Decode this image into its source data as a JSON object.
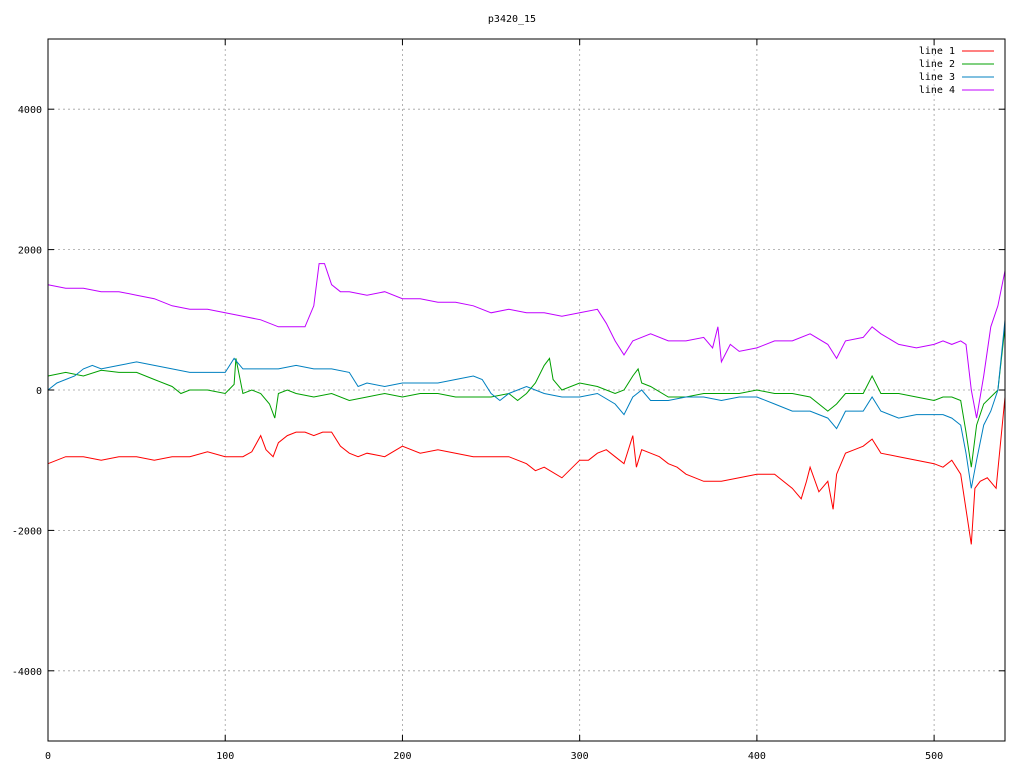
{
  "chart_data": {
    "type": "line",
    "title": "p3420_15",
    "xlim": [
      0,
      540
    ],
    "ylim": [
      -5000,
      5000
    ],
    "xticks": [
      0,
      100,
      200,
      300,
      400,
      500
    ],
    "yticks": [
      -4000,
      -2000,
      0,
      2000,
      4000
    ],
    "grid": true,
    "legend_position": "top-right",
    "series": [
      {
        "name": "line 1",
        "color": "#ff0000",
        "x": [
          0,
          10,
          20,
          30,
          40,
          50,
          60,
          70,
          80,
          90,
          100,
          110,
          115,
          120,
          123,
          127,
          130,
          135,
          140,
          145,
          150,
          155,
          160,
          165,
          170,
          175,
          180,
          190,
          200,
          210,
          220,
          230,
          240,
          250,
          260,
          270,
          275,
          280,
          290,
          300,
          305,
          310,
          315,
          320,
          325,
          330,
          332,
          335,
          340,
          345,
          350,
          355,
          360,
          370,
          380,
          390,
          400,
          410,
          420,
          425,
          428,
          430,
          435,
          440,
          443,
          445,
          450,
          455,
          460,
          465,
          470,
          480,
          490,
          500,
          505,
          510,
          515,
          518,
          521,
          523,
          526,
          530,
          535,
          540
        ],
        "y": [
          -1050,
          -950,
          -950,
          -1000,
          -950,
          -950,
          -1000,
          -950,
          -950,
          -880,
          -950,
          -950,
          -880,
          -650,
          -850,
          -950,
          -750,
          -650,
          -600,
          -600,
          -650,
          -600,
          -600,
          -800,
          -900,
          -950,
          -900,
          -950,
          -800,
          -900,
          -850,
          -900,
          -950,
          -950,
          -950,
          -1050,
          -1150,
          -1100,
          -1250,
          -1000,
          -1000,
          -900,
          -850,
          -950,
          -1050,
          -650,
          -1100,
          -850,
          -900,
          -950,
          -1050,
          -1100,
          -1200,
          -1300,
          -1300,
          -1250,
          -1200,
          -1200,
          -1400,
          -1550,
          -1300,
          -1100,
          -1450,
          -1300,
          -1700,
          -1200,
          -900,
          -850,
          -800,
          -700,
          -900,
          -950,
          -1000,
          -1050,
          -1100,
          -1000,
          -1200,
          -1700,
          -2200,
          -1400,
          -1300,
          -1250,
          -1400,
          -100
        ]
      },
      {
        "name": "line 2",
        "color": "#00a000",
        "x": [
          0,
          10,
          20,
          30,
          40,
          50,
          60,
          70,
          75,
          80,
          90,
          100,
          105,
          106,
          110,
          115,
          120,
          125,
          128,
          130,
          135,
          140,
          150,
          160,
          170,
          180,
          190,
          200,
          210,
          220,
          230,
          240,
          250,
          260,
          265,
          270,
          275,
          280,
          283,
          285,
          290,
          300,
          310,
          320,
          325,
          330,
          333,
          335,
          340,
          350,
          360,
          370,
          380,
          390,
          400,
          410,
          420,
          430,
          440,
          445,
          450,
          460,
          465,
          470,
          480,
          490,
          500,
          505,
          510,
          515,
          518,
          521,
          524,
          528,
          532,
          536,
          540
        ],
        "y": [
          200,
          250,
          200,
          280,
          250,
          250,
          150,
          50,
          -50,
          0,
          0,
          -50,
          80,
          450,
          -50,
          0,
          -50,
          -200,
          -400,
          -50,
          0,
          -50,
          -100,
          -50,
          -150,
          -100,
          -50,
          -100,
          -50,
          -50,
          -100,
          -100,
          -100,
          -50,
          -150,
          -50,
          100,
          350,
          450,
          150,
          0,
          100,
          50,
          -50,
          0,
          200,
          300,
          100,
          50,
          -100,
          -100,
          -50,
          -50,
          -50,
          0,
          -50,
          -50,
          -100,
          -300,
          -200,
          -50,
          -50,
          200,
          -50,
          -50,
          -100,
          -150,
          -100,
          -100,
          -150,
          -600,
          -1100,
          -500,
          -200,
          -100,
          0,
          900
        ]
      },
      {
        "name": "line 3",
        "color": "#0080c0",
        "x": [
          0,
          5,
          10,
          15,
          20,
          25,
          30,
          40,
          50,
          60,
          70,
          80,
          90,
          100,
          105,
          110,
          120,
          130,
          140,
          150,
          160,
          170,
          175,
          180,
          190,
          200,
          210,
          220,
          230,
          240,
          245,
          250,
          255,
          260,
          270,
          280,
          290,
          300,
          310,
          320,
          325,
          330,
          335,
          340,
          350,
          360,
          370,
          380,
          390,
          400,
          410,
          420,
          430,
          440,
          445,
          448,
          450,
          460,
          465,
          470,
          480,
          490,
          500,
          505,
          510,
          515,
          518,
          521,
          524,
          528,
          532,
          536,
          540
        ],
        "y": [
          0,
          100,
          150,
          200,
          300,
          350,
          300,
          350,
          400,
          350,
          300,
          250,
          250,
          250,
          450,
          300,
          300,
          300,
          350,
          300,
          300,
          250,
          50,
          100,
          50,
          100,
          100,
          100,
          150,
          200,
          150,
          -50,
          -150,
          -50,
          50,
          -50,
          -100,
          -100,
          -50,
          -200,
          -350,
          -100,
          0,
          -150,
          -150,
          -100,
          -100,
          -150,
          -100,
          -100,
          -200,
          -300,
          -300,
          -400,
          -550,
          -400,
          -300,
          -300,
          -100,
          -300,
          -400,
          -350,
          -350,
          -350,
          -400,
          -500,
          -900,
          -1400,
          -1000,
          -500,
          -300,
          0,
          1000
        ]
      },
      {
        "name": "line 4",
        "color": "#c000ff",
        "x": [
          0,
          10,
          20,
          30,
          40,
          50,
          60,
          70,
          80,
          90,
          100,
          110,
          120,
          130,
          140,
          145,
          150,
          153,
          156,
          160,
          165,
          170,
          180,
          190,
          200,
          210,
          220,
          230,
          240,
          250,
          260,
          270,
          280,
          290,
          300,
          310,
          315,
          320,
          325,
          330,
          340,
          350,
          360,
          370,
          375,
          378,
          380,
          385,
          390,
          400,
          410,
          420,
          430,
          440,
          445,
          450,
          460,
          465,
          470,
          480,
          490,
          500,
          505,
          510,
          515,
          518,
          521,
          524,
          528,
          532,
          536,
          540
        ],
        "y": [
          1500,
          1450,
          1450,
          1400,
          1400,
          1350,
          1300,
          1200,
          1150,
          1150,
          1100,
          1050,
          1000,
          900,
          900,
          900,
          1200,
          1800,
          1800,
          1500,
          1400,
          1400,
          1350,
          1400,
          1300,
          1300,
          1250,
          1250,
          1200,
          1100,
          1150,
          1100,
          1100,
          1050,
          1100,
          1150,
          950,
          700,
          500,
          700,
          800,
          700,
          700,
          750,
          600,
          900,
          400,
          650,
          550,
          600,
          700,
          700,
          800,
          650,
          450,
          700,
          750,
          900,
          800,
          650,
          600,
          650,
          700,
          650,
          700,
          650,
          0,
          -400,
          200,
          900,
          1200,
          1700
        ]
      }
    ]
  }
}
